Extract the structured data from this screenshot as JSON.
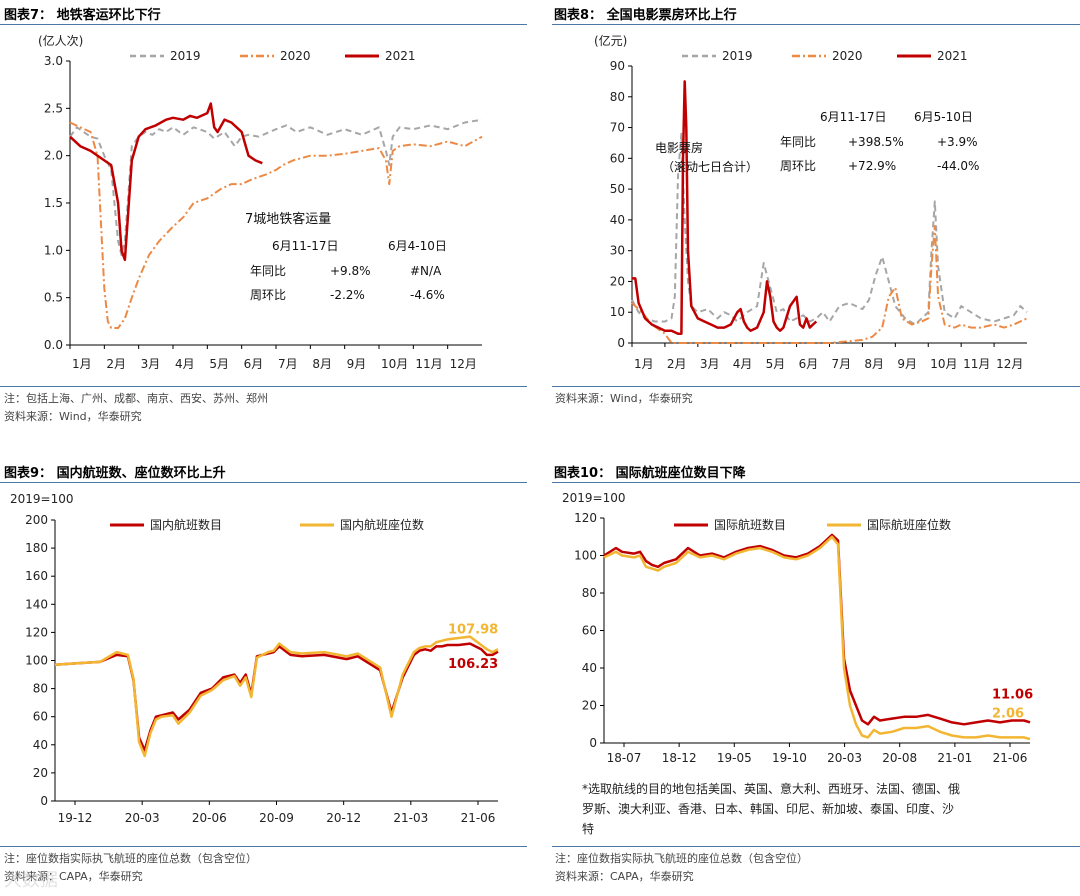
{
  "panels": [
    {
      "title": "图表7： 地铁客运环比下行",
      "notes": [
        "注：包括上海、广州、成都、南京、西安、苏州、郑州",
        "资料来源：Wind，华泰研究"
      ]
    },
    {
      "title": "图表8： 全国电影票房环比上行",
      "notes": [
        "资料来源：Wind，华泰研究"
      ]
    },
    {
      "title": "图表9： 国内航班数、座位数环比上升",
      "notes": [
        "注：座位数指实际执飞航班的座位总数（包含空位）",
        "资料来源：CAPA，华泰研究"
      ]
    },
    {
      "title": "图表10： 国际航班座位数目下降",
      "notes": [
        "注：座位数指实际执飞航班的座位总数（包含空位）",
        "资料来源：CAPA，华泰研究"
      ],
      "footnote": [
        "*选取航线的目的地包括美国、英国、意大利、西班牙、法国、德国、俄",
        "罗斯、澳大利亚、香港、日本、韩国、印尼、新加坡、泰国、印度、沙",
        "特"
      ]
    }
  ],
  "watermark": "大数据",
  "chart_data": [
    {
      "type": "line",
      "ylabel": "(亿人次)",
      "ylim": [
        0,
        3
      ],
      "yticks": [
        "0.0",
        "0.5",
        "1.0",
        "1.5",
        "2.0",
        "2.5",
        "3.0"
      ],
      "xticks": [
        "1月",
        "2月",
        "3月",
        "4月",
        "5月",
        "6月",
        "7月",
        "8月",
        "9月",
        "10月",
        "11月",
        "12月"
      ],
      "xdomain": [
        1,
        13
      ],
      "series": [
        {
          "name": "2019",
          "color": "#a6a6a6",
          "dash": "6,4",
          "width": 2,
          "x": [
            1,
            1.2,
            1.4,
            1.6,
            1.8,
            2,
            2.2,
            2.4,
            2.5,
            2.6,
            2.7,
            2.8,
            3,
            3.2,
            3.4,
            3.6,
            3.8,
            4,
            4.3,
            4.6,
            5,
            5.2,
            5.5,
            5.8,
            6,
            6.2,
            6.5,
            7,
            7.3,
            7.6,
            8,
            8.5,
            9,
            9.5,
            10,
            10.2,
            10.3,
            10.4,
            10.6,
            11,
            11.5,
            12,
            12.5,
            13
          ],
          "y": [
            2.2,
            2.3,
            2.25,
            2.2,
            2.18,
            2.0,
            1.85,
            1.1,
            0.95,
            1.1,
            1.6,
            2.1,
            2.2,
            2.25,
            2.22,
            2.28,
            2.25,
            2.3,
            2.22,
            2.3,
            2.25,
            2.18,
            2.25,
            2.1,
            2.2,
            2.22,
            2.2,
            2.28,
            2.32,
            2.25,
            2.3,
            2.22,
            2.28,
            2.22,
            2.3,
            2.05,
            1.9,
            2.2,
            2.3,
            2.28,
            2.32,
            2.28,
            2.35,
            2.38
          ]
        },
        {
          "name": "2020",
          "color": "#ec8a45",
          "dash": "8,3,2,3",
          "width": 2,
          "x": [
            1,
            1.3,
            1.6,
            1.8,
            2,
            2.1,
            2.2,
            2.4,
            2.6,
            2.8,
            3,
            3.3,
            3.6,
            4,
            4.3,
            4.6,
            5,
            5.2,
            5.4,
            5.7,
            6,
            6.3,
            6.7,
            7,
            7.2,
            7.5,
            8,
            8.5,
            9,
            9.5,
            10,
            10.2,
            10.3,
            10.4,
            10.6,
            11,
            11.5,
            12,
            12.5,
            13
          ],
          "y": [
            2.35,
            2.3,
            2.25,
            2.0,
            0.6,
            0.25,
            0.18,
            0.18,
            0.28,
            0.5,
            0.7,
            0.95,
            1.1,
            1.25,
            1.35,
            1.5,
            1.55,
            1.6,
            1.65,
            1.7,
            1.7,
            1.75,
            1.8,
            1.85,
            1.9,
            1.95,
            2.0,
            2.0,
            2.02,
            2.05,
            2.08,
            1.95,
            1.7,
            2.05,
            2.1,
            2.12,
            2.1,
            2.15,
            2.1,
            2.2
          ]
        },
        {
          "name": "2021",
          "color": "#c00000",
          "dash": "",
          "width": 2.5,
          "x": [
            1,
            1.3,
            1.6,
            2,
            2.2,
            2.4,
            2.5,
            2.6,
            2.8,
            3,
            3.2,
            3.5,
            3.8,
            4,
            4.3,
            4.5,
            4.7,
            5,
            5.1,
            5.2,
            5.3,
            5.5,
            5.7,
            6,
            6.2,
            6.4,
            6.6
          ],
          "y": [
            2.2,
            2.1,
            2.05,
            1.95,
            1.9,
            1.5,
            1.0,
            0.9,
            1.95,
            2.2,
            2.28,
            2.32,
            2.38,
            2.4,
            2.38,
            2.42,
            2.4,
            2.45,
            2.55,
            2.3,
            2.25,
            2.38,
            2.35,
            2.25,
            2.0,
            1.95,
            1.92
          ]
        }
      ],
      "annotations": {
        "title": "7城地铁客运量",
        "headers": [
          "6月11-17日",
          "6月4-10日"
        ],
        "rows": [
          [
            "年同比",
            "+9.8%",
            "#N/A"
          ],
          [
            "周环比",
            "-2.2%",
            "-4.6%"
          ]
        ]
      }
    },
    {
      "type": "line",
      "ylabel": "(亿元)",
      "ylim": [
        0,
        90
      ],
      "yticks": [
        "0",
        "10",
        "20",
        "30",
        "40",
        "50",
        "60",
        "70",
        "80",
        "90"
      ],
      "xticks": [
        "1月",
        "2月",
        "3月",
        "4月",
        "5月",
        "6月",
        "7月",
        "8月",
        "9月",
        "10月",
        "11月",
        "12月"
      ],
      "xdomain": [
        1,
        13
      ],
      "series": [
        {
          "name": "2019",
          "color": "#a6a6a6",
          "dash": "6,4",
          "width": 2,
          "x": [
            1,
            1.2,
            1.4,
            1.7,
            2,
            2.2,
            2.3,
            2.4,
            2.5,
            2.6,
            2.7,
            2.8,
            3,
            3.3,
            3.6,
            3.8,
            4,
            4.2,
            4.5,
            4.8,
            5,
            5.2,
            5.4,
            5.6,
            5.8,
            6,
            6.2,
            6.4,
            6.6,
            6.8,
            7,
            7.3,
            7.6,
            8,
            8.2,
            8.4,
            8.6,
            8.8,
            9,
            9.3,
            9.6,
            10,
            10.1,
            10.2,
            10.3,
            10.5,
            10.8,
            11,
            11.3,
            11.6,
            12,
            12.3,
            12.6,
            12.8,
            13
          ],
          "y": [
            14,
            10,
            8,
            7,
            7,
            8,
            15,
            55,
            68,
            40,
            20,
            12,
            10,
            11,
            8,
            10,
            9,
            7,
            10,
            12,
            26,
            18,
            10,
            11,
            7,
            8,
            9,
            7,
            8,
            10,
            7,
            12,
            13,
            11,
            14,
            22,
            28,
            20,
            12,
            8,
            6,
            10,
            30,
            46,
            25,
            10,
            8,
            12,
            10,
            8,
            7,
            8,
            9,
            12,
            10
          ]
        },
        {
          "name": "2020",
          "color": "#ec8a45",
          "dash": "8,3,2,3",
          "width": 2,
          "x": [
            1,
            1.3,
            1.6,
            2,
            2.2,
            2.5,
            3,
            4,
            5,
            6,
            7,
            7.5,
            8,
            8.3,
            8.6,
            8.8,
            9,
            9.2,
            9.5,
            9.8,
            10,
            10.1,
            10.2,
            10.3,
            10.5,
            10.8,
            11,
            11.3,
            11.6,
            12,
            12.3,
            12.6,
            13
          ],
          "y": [
            13,
            10,
            6,
            3,
            0,
            0,
            0,
            0,
            0,
            0,
            0,
            0.5,
            1,
            2,
            5,
            15,
            18,
            8,
            6,
            7,
            8,
            25,
            38,
            15,
            6,
            5,
            6,
            5,
            5,
            6,
            5,
            6,
            8
          ]
        },
        {
          "name": "2021",
          "color": "#c00000",
          "dash": "",
          "width": 2.5,
          "x": [
            1,
            1.1,
            1.2,
            1.4,
            1.6,
            1.8,
            2,
            2.2,
            2.4,
            2.5,
            2.55,
            2.6,
            2.65,
            2.7,
            2.8,
            3,
            3.2,
            3.4,
            3.6,
            3.8,
            4,
            4.1,
            4.2,
            4.3,
            4.4,
            4.5,
            4.6,
            4.8,
            5,
            5.1,
            5.2,
            5.3,
            5.4,
            5.5,
            5.6,
            5.8,
            6,
            6.1,
            6.2,
            6.3,
            6.4,
            6.5,
            6.6
          ],
          "y": [
            21,
            21,
            13,
            8,
            6,
            5,
            4,
            4,
            3,
            3,
            60,
            85,
            70,
            30,
            12,
            8,
            7,
            6,
            5,
            5,
            6,
            8,
            10,
            11,
            7,
            5,
            4,
            5,
            10,
            20,
            15,
            7,
            5,
            4,
            5,
            12,
            15,
            6,
            5,
            8,
            5,
            6,
            7
          ]
        }
      ],
      "annotations": {
        "left": [
          "电影票房",
          "（滚动七日合计）"
        ],
        "headers": [
          "6月11-17日",
          "6月5-10日"
        ],
        "rows": [
          [
            "年同比",
            "+398.5%",
            "+3.9%"
          ],
          [
            "周环比",
            "+72.9%",
            "-44.0%"
          ]
        ]
      }
    },
    {
      "type": "line",
      "ylabel": "2019=100",
      "ylim": [
        0,
        200
      ],
      "yticks": [
        "0",
        "20",
        "40",
        "60",
        "80",
        "100",
        "120",
        "140",
        "160",
        "180",
        "200"
      ],
      "xticks": [
        "19-12",
        "20-03",
        "20-06",
        "20-09",
        "20-12",
        "21-03",
        "21-06"
      ],
      "xdomain": [
        0,
        79
      ],
      "series": [
        {
          "name": "国内航班数目",
          "color": "#c00000",
          "dash": "",
          "width": 2.5,
          "x": [
            0,
            4,
            8,
            11,
            13,
            14,
            15,
            16,
            17,
            18,
            19,
            21,
            22,
            24,
            26,
            28,
            30,
            32,
            33,
            34,
            35,
            36,
            37,
            38,
            39,
            40,
            42,
            44,
            48,
            52,
            54,
            56,
            58,
            60,
            62,
            64,
            65,
            66,
            67,
            68,
            69,
            70,
            72,
            74,
            76,
            77,
            78,
            79
          ],
          "y": [
            97,
            98,
            99,
            104,
            103,
            86,
            45,
            36,
            50,
            60,
            61,
            63,
            58,
            65,
            77,
            80,
            88,
            90,
            84,
            90,
            76,
            103,
            104,
            105,
            106,
            110,
            104,
            103,
            104,
            101,
            103,
            98,
            93,
            63,
            88,
            104,
            107,
            108,
            107,
            110,
            110,
            111,
            111,
            112,
            108,
            104,
            104,
            106.23
          ]
        },
        {
          "name": "国内航班座位数",
          "color": "#f2b632",
          "dash": "",
          "width": 2.5,
          "x": [
            0,
            4,
            8,
            11,
            13,
            14,
            15,
            16,
            17,
            18,
            19,
            21,
            22,
            24,
            26,
            28,
            30,
            32,
            33,
            34,
            35,
            36,
            37,
            38,
            39,
            40,
            42,
            44,
            48,
            52,
            54,
            56,
            58,
            60,
            62,
            64,
            65,
            66,
            67,
            68,
            69,
            70,
            72,
            74,
            76,
            77,
            78,
            79
          ],
          "y": [
            97,
            98,
            99,
            106,
            104,
            87,
            42,
            32,
            48,
            58,
            60,
            61,
            55,
            63,
            75,
            79,
            86,
            89,
            82,
            88,
            74,
            102,
            104,
            106,
            107,
            112,
            106,
            105,
            106,
            103,
            105,
            100,
            95,
            60,
            90,
            106,
            109,
            110,
            110,
            113,
            114,
            115,
            116,
            117,
            111,
            108,
            106,
            107.98
          ]
        }
      ],
      "labels": [
        {
          "text": "107.98",
          "color": "#f2b632",
          "x": 79,
          "y": 108
        },
        {
          "text": "106.23",
          "color": "#c00000",
          "x": 79,
          "y": 106
        }
      ]
    },
    {
      "type": "line",
      "ylabel": "2019=100",
      "ylim": [
        0,
        120
      ],
      "yticks": [
        "0",
        "20",
        "40",
        "60",
        "80",
        "100",
        "120"
      ],
      "xticks": [
        "18-07",
        "18-12",
        "19-05",
        "19-10",
        "20-03",
        "20-08",
        "21-01",
        "21-06"
      ],
      "xdomain": [
        0,
        35.5
      ],
      "series": [
        {
          "name": "国际航班数目",
          "color": "#c00000",
          "dash": "",
          "width": 2.5,
          "x": [
            0,
            1,
            1.5,
            2.5,
            3,
            3.5,
            4,
            4.5,
            5,
            6,
            7,
            8,
            9,
            10,
            11,
            12,
            13,
            14,
            15,
            16,
            17,
            18,
            19,
            19.5,
            20,
            20.5,
            21,
            21.5,
            22,
            22.5,
            23,
            24,
            25,
            26,
            27,
            28,
            29,
            30,
            31,
            32,
            33,
            34,
            35,
            35.5
          ],
          "y": [
            100,
            104,
            102,
            101,
            102,
            97,
            95,
            94,
            96,
            98,
            104,
            100,
            101,
            99,
            102,
            104,
            105,
            103,
            100,
            99,
            101,
            105,
            111,
            108,
            45,
            28,
            20,
            12,
            10,
            14,
            12,
            13,
            14,
            14,
            15,
            13,
            11,
            10,
            11,
            12,
            11,
            12,
            12,
            11.06
          ]
        },
        {
          "name": "国际航班座位数",
          "color": "#f2b632",
          "dash": "",
          "width": 2.5,
          "x": [
            0,
            1,
            1.5,
            2.5,
            3,
            3.5,
            4,
            4.5,
            5,
            6,
            7,
            8,
            9,
            10,
            11,
            12,
            13,
            14,
            15,
            16,
            17,
            18,
            19,
            19.5,
            20,
            20.5,
            21,
            21.5,
            22,
            22.5,
            23,
            24,
            25,
            26,
            27,
            28,
            29,
            30,
            31,
            32,
            33,
            34,
            35,
            35.5
          ],
          "y": [
            99,
            102,
            100,
            99,
            100,
            94,
            93,
            92,
            94,
            96,
            102,
            99,
            100,
            98,
            101,
            103,
            104,
            102,
            99,
            98,
            100,
            104,
            110,
            106,
            40,
            20,
            10,
            4,
            3,
            7,
            5,
            6,
            8,
            8,
            9,
            6,
            4,
            3,
            3,
            4,
            3,
            3,
            3,
            2.06
          ]
        }
      ],
      "labels": [
        {
          "text": "11.06",
          "color": "#c00000",
          "x": 35.5,
          "y": 11
        },
        {
          "text": "2.06",
          "color": "#f2b632",
          "x": 35.5,
          "y": 2
        }
      ]
    }
  ]
}
